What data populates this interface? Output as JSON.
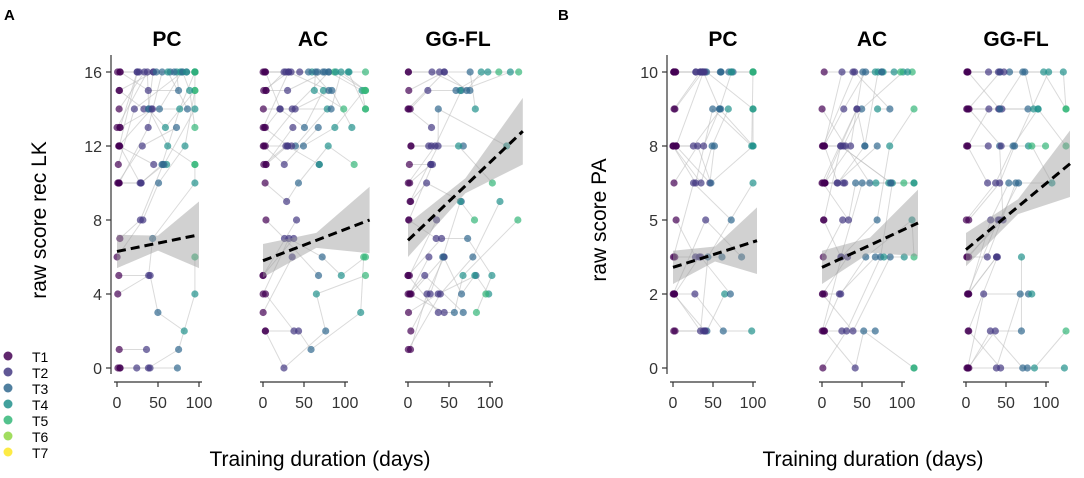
{
  "chart_data": [
    {
      "panel": "A",
      "type": "scatter",
      "facets": [
        "PC",
        "AC",
        "GG-FL"
      ],
      "ylabel": "raw score rec LK",
      "xlabel": "Training duration (days)",
      "ylim": [
        0,
        16
      ],
      "yticks": [
        0,
        4,
        8,
        12,
        16
      ],
      "xticks": [
        0,
        50,
        100
      ],
      "trend": [
        {
          "facet": "PC",
          "x": [
            0,
            100
          ],
          "y": [
            6.3,
            7.2
          ]
        },
        {
          "facet": "AC",
          "x": [
            0,
            130
          ],
          "y": [
            5.8,
            8.0
          ]
        },
        {
          "facet": "GG-FL",
          "x": [
            0,
            140
          ],
          "y": [
            6.9,
            12.8
          ]
        }
      ]
    },
    {
      "panel": "B",
      "type": "scatter",
      "facets": [
        "PC",
        "AC",
        "GG-FL"
      ],
      "ylabel": "raw score PA",
      "xlabel": "Training duration (days)",
      "ylim": [
        0,
        10
      ],
      "yticks": [
        0,
        2,
        5,
        8,
        10
      ],
      "ytick_values": [
        0,
        2.5,
        5,
        7.5,
        10
      ],
      "xticks": [
        0,
        50,
        100
      ],
      "trend": [
        {
          "facet": "PC",
          "x": [
            0,
            105
          ],
          "y": [
            3.4,
            4.3
          ]
        },
        {
          "facet": "AC",
          "x": [
            0,
            120
          ],
          "y": [
            3.4,
            4.9
          ]
        },
        {
          "facet": "GG-FL",
          "x": [
            0,
            130
          ],
          "y": [
            4.0,
            6.9
          ]
        }
      ]
    }
  ],
  "legend": {
    "items": [
      "T1",
      "T2",
      "T3",
      "T4",
      "T5",
      "T6",
      "T7"
    ],
    "colors": [
      "#440154",
      "#443983",
      "#31688e",
      "#21918c",
      "#35b779",
      "#90d743",
      "#fde725"
    ]
  }
}
